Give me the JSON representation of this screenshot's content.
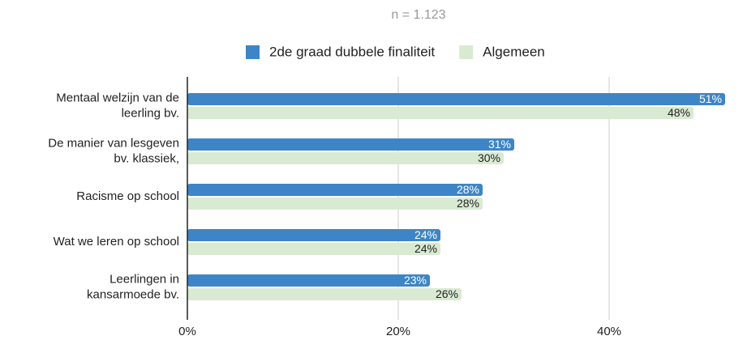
{
  "chart_data": {
    "type": "hbar",
    "subtitle": "n = 1.123",
    "categories": [
      "Mentaal welzijn van de\nleerling bv.",
      "De manier van lesgeven\nbv. klassiek,",
      "Racisme op school",
      "Wat we leren op school",
      "Leerlingen in\nkansarmoede bv."
    ],
    "series": [
      {
        "name": "2de graad dubbele finaliteit",
        "color": "#3d85c6",
        "label_color": "#ffffff",
        "values": [
          51,
          31,
          28,
          24,
          23
        ],
        "value_labels": [
          "51%",
          "31%",
          "28%",
          "24%",
          "23%"
        ]
      },
      {
        "name": "Algemeen",
        "color": "#d9ead3",
        "label_color": "#222222",
        "values": [
          48,
          30,
          28,
          24,
          26
        ],
        "value_labels": [
          "48%",
          "30%",
          "28%",
          "24%",
          "26%"
        ]
      }
    ],
    "xlim": [
      0,
      52
    ],
    "xticks": [
      {
        "value": 0,
        "label": "0%"
      },
      {
        "value": 20,
        "label": "20%"
      },
      {
        "value": 40,
        "label": "40%"
      }
    ],
    "grid": true,
    "legend": "top"
  }
}
